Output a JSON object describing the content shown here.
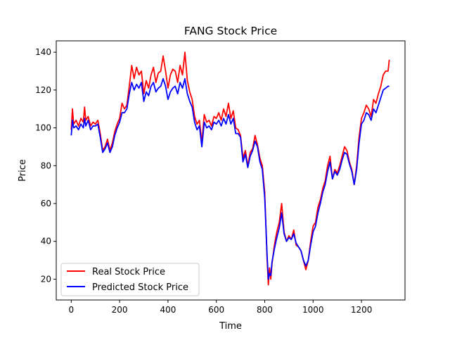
{
  "chart_data": {
    "type": "line",
    "title": "FANG Stock Price",
    "xlabel": "Time",
    "ylabel": "Price",
    "xlim": [
      -62,
      1380
    ],
    "ylim": [
      9,
      146
    ],
    "xticks": [
      0,
      200,
      400,
      600,
      800,
      1000,
      1200
    ],
    "yticks": [
      20,
      40,
      60,
      80,
      100,
      120,
      140
    ],
    "grid": false,
    "legend_position": "lower-left",
    "series": [
      {
        "name": "Real Stock Price",
        "color": "#ff0000",
        "x": [
          0,
          5,
          10,
          20,
          30,
          40,
          50,
          55,
          60,
          70,
          80,
          90,
          100,
          110,
          120,
          130,
          140,
          150,
          160,
          170,
          180,
          190,
          200,
          210,
          220,
          230,
          240,
          250,
          260,
          270,
          280,
          290,
          300,
          310,
          320,
          330,
          340,
          350,
          360,
          370,
          380,
          390,
          400,
          410,
          420,
          430,
          440,
          450,
          460,
          470,
          480,
          490,
          500,
          510,
          520,
          530,
          540,
          550,
          560,
          570,
          580,
          590,
          600,
          610,
          620,
          630,
          640,
          650,
          660,
          670,
          680,
          690,
          700,
          710,
          720,
          730,
          740,
          750,
          760,
          770,
          780,
          790,
          800,
          810,
          815,
          820,
          825,
          830,
          840,
          850,
          860,
          870,
          880,
          890,
          900,
          910,
          920,
          930,
          940,
          950,
          960,
          970,
          980,
          990,
          1000,
          1010,
          1020,
          1030,
          1040,
          1050,
          1060,
          1070,
          1080,
          1090,
          1100,
          1110,
          1120,
          1130,
          1140,
          1150,
          1160,
          1170,
          1180,
          1190,
          1200,
          1210,
          1220,
          1230,
          1240,
          1250,
          1260,
          1270,
          1280,
          1290,
          1300,
          1310,
          1315
        ],
        "values": [
          99,
          110,
          102,
          104,
          101,
          105,
          103,
          111,
          104,
          106,
          101,
          103,
          102,
          104,
          97,
          88,
          90,
          94,
          88,
          92,
          98,
          102,
          105,
          113,
          110,
          112,
          122,
          133,
          126,
          132,
          128,
          130,
          118,
          125,
          121,
          128,
          132,
          124,
          129,
          130,
          138,
          130,
          121,
          128,
          131,
          130,
          124,
          133,
          128,
          140,
          125,
          119,
          115,
          106,
          102,
          104,
          92,
          107,
          103,
          104,
          101,
          106,
          105,
          108,
          104,
          110,
          106,
          113,
          105,
          109,
          100,
          99,
          96,
          84,
          88,
          80,
          87,
          89,
          96,
          91,
          84,
          80,
          66,
          30,
          17,
          26,
          20,
          28,
          38,
          45,
          50,
          60,
          45,
          40,
          43,
          41,
          46,
          38,
          37,
          35,
          30,
          25,
          30,
          40,
          48,
          50,
          58,
          62,
          68,
          72,
          80,
          85,
          73,
          78,
          76,
          80,
          85,
          90,
          88,
          82,
          78,
          70,
          80,
          95,
          105,
          108,
          112,
          110,
          106,
          115,
          113,
          118,
          122,
          128,
          130,
          130,
          136
        ]
      },
      {
        "name": "Predicted Stock Price",
        "color": "#0000ff",
        "x": [
          0,
          5,
          10,
          20,
          30,
          40,
          50,
          55,
          60,
          70,
          80,
          90,
          100,
          110,
          120,
          130,
          140,
          150,
          160,
          170,
          180,
          190,
          200,
          210,
          220,
          230,
          240,
          250,
          260,
          270,
          280,
          290,
          300,
          310,
          320,
          330,
          340,
          350,
          360,
          370,
          380,
          390,
          400,
          410,
          420,
          430,
          440,
          450,
          460,
          470,
          480,
          490,
          500,
          510,
          520,
          530,
          540,
          550,
          560,
          570,
          580,
          590,
          600,
          610,
          620,
          630,
          640,
          650,
          660,
          670,
          680,
          690,
          700,
          710,
          720,
          730,
          740,
          750,
          760,
          770,
          780,
          790,
          800,
          810,
          815,
          820,
          825,
          830,
          840,
          850,
          860,
          870,
          880,
          890,
          900,
          910,
          920,
          930,
          940,
          950,
          960,
          970,
          980,
          990,
          1000,
          1010,
          1020,
          1030,
          1040,
          1050,
          1060,
          1070,
          1080,
          1090,
          1100,
          1110,
          1120,
          1130,
          1140,
          1150,
          1160,
          1170,
          1180,
          1190,
          1200,
          1210,
          1220,
          1230,
          1240,
          1250,
          1260,
          1270,
          1280,
          1290,
          1300,
          1310,
          1315
        ],
        "values": [
          96,
          104,
          100,
          101,
          99,
          102,
          100,
          105,
          101,
          104,
          99,
          101,
          101,
          102,
          95,
          87,
          89,
          92,
          87,
          90,
          96,
          100,
          103,
          108,
          108,
          110,
          118,
          124,
          120,
          123,
          121,
          124,
          114,
          119,
          117,
          122,
          124,
          119,
          121,
          122,
          126,
          122,
          115,
          119,
          121,
          122,
          118,
          124,
          121,
          126,
          118,
          114,
          111,
          103,
          99,
          101,
          90,
          103,
          100,
          101,
          99,
          103,
          102,
          104,
          101,
          105,
          102,
          107,
          102,
          105,
          97,
          97,
          95,
          82,
          86,
          79,
          85,
          88,
          93,
          90,
          82,
          78,
          63,
          32,
          20,
          23,
          22,
          29,
          36,
          42,
          47,
          55,
          44,
          40,
          42,
          41,
          44,
          39,
          37,
          35,
          30,
          27,
          30,
          38,
          45,
          48,
          55,
          60,
          66,
          70,
          77,
          82,
          73,
          77,
          75,
          78,
          83,
          87,
          86,
          81,
          77,
          70,
          78,
          92,
          102,
          104,
          108,
          107,
          104,
          110,
          108,
          112,
          116,
          120,
          121,
          122,
          122
        ]
      }
    ]
  }
}
